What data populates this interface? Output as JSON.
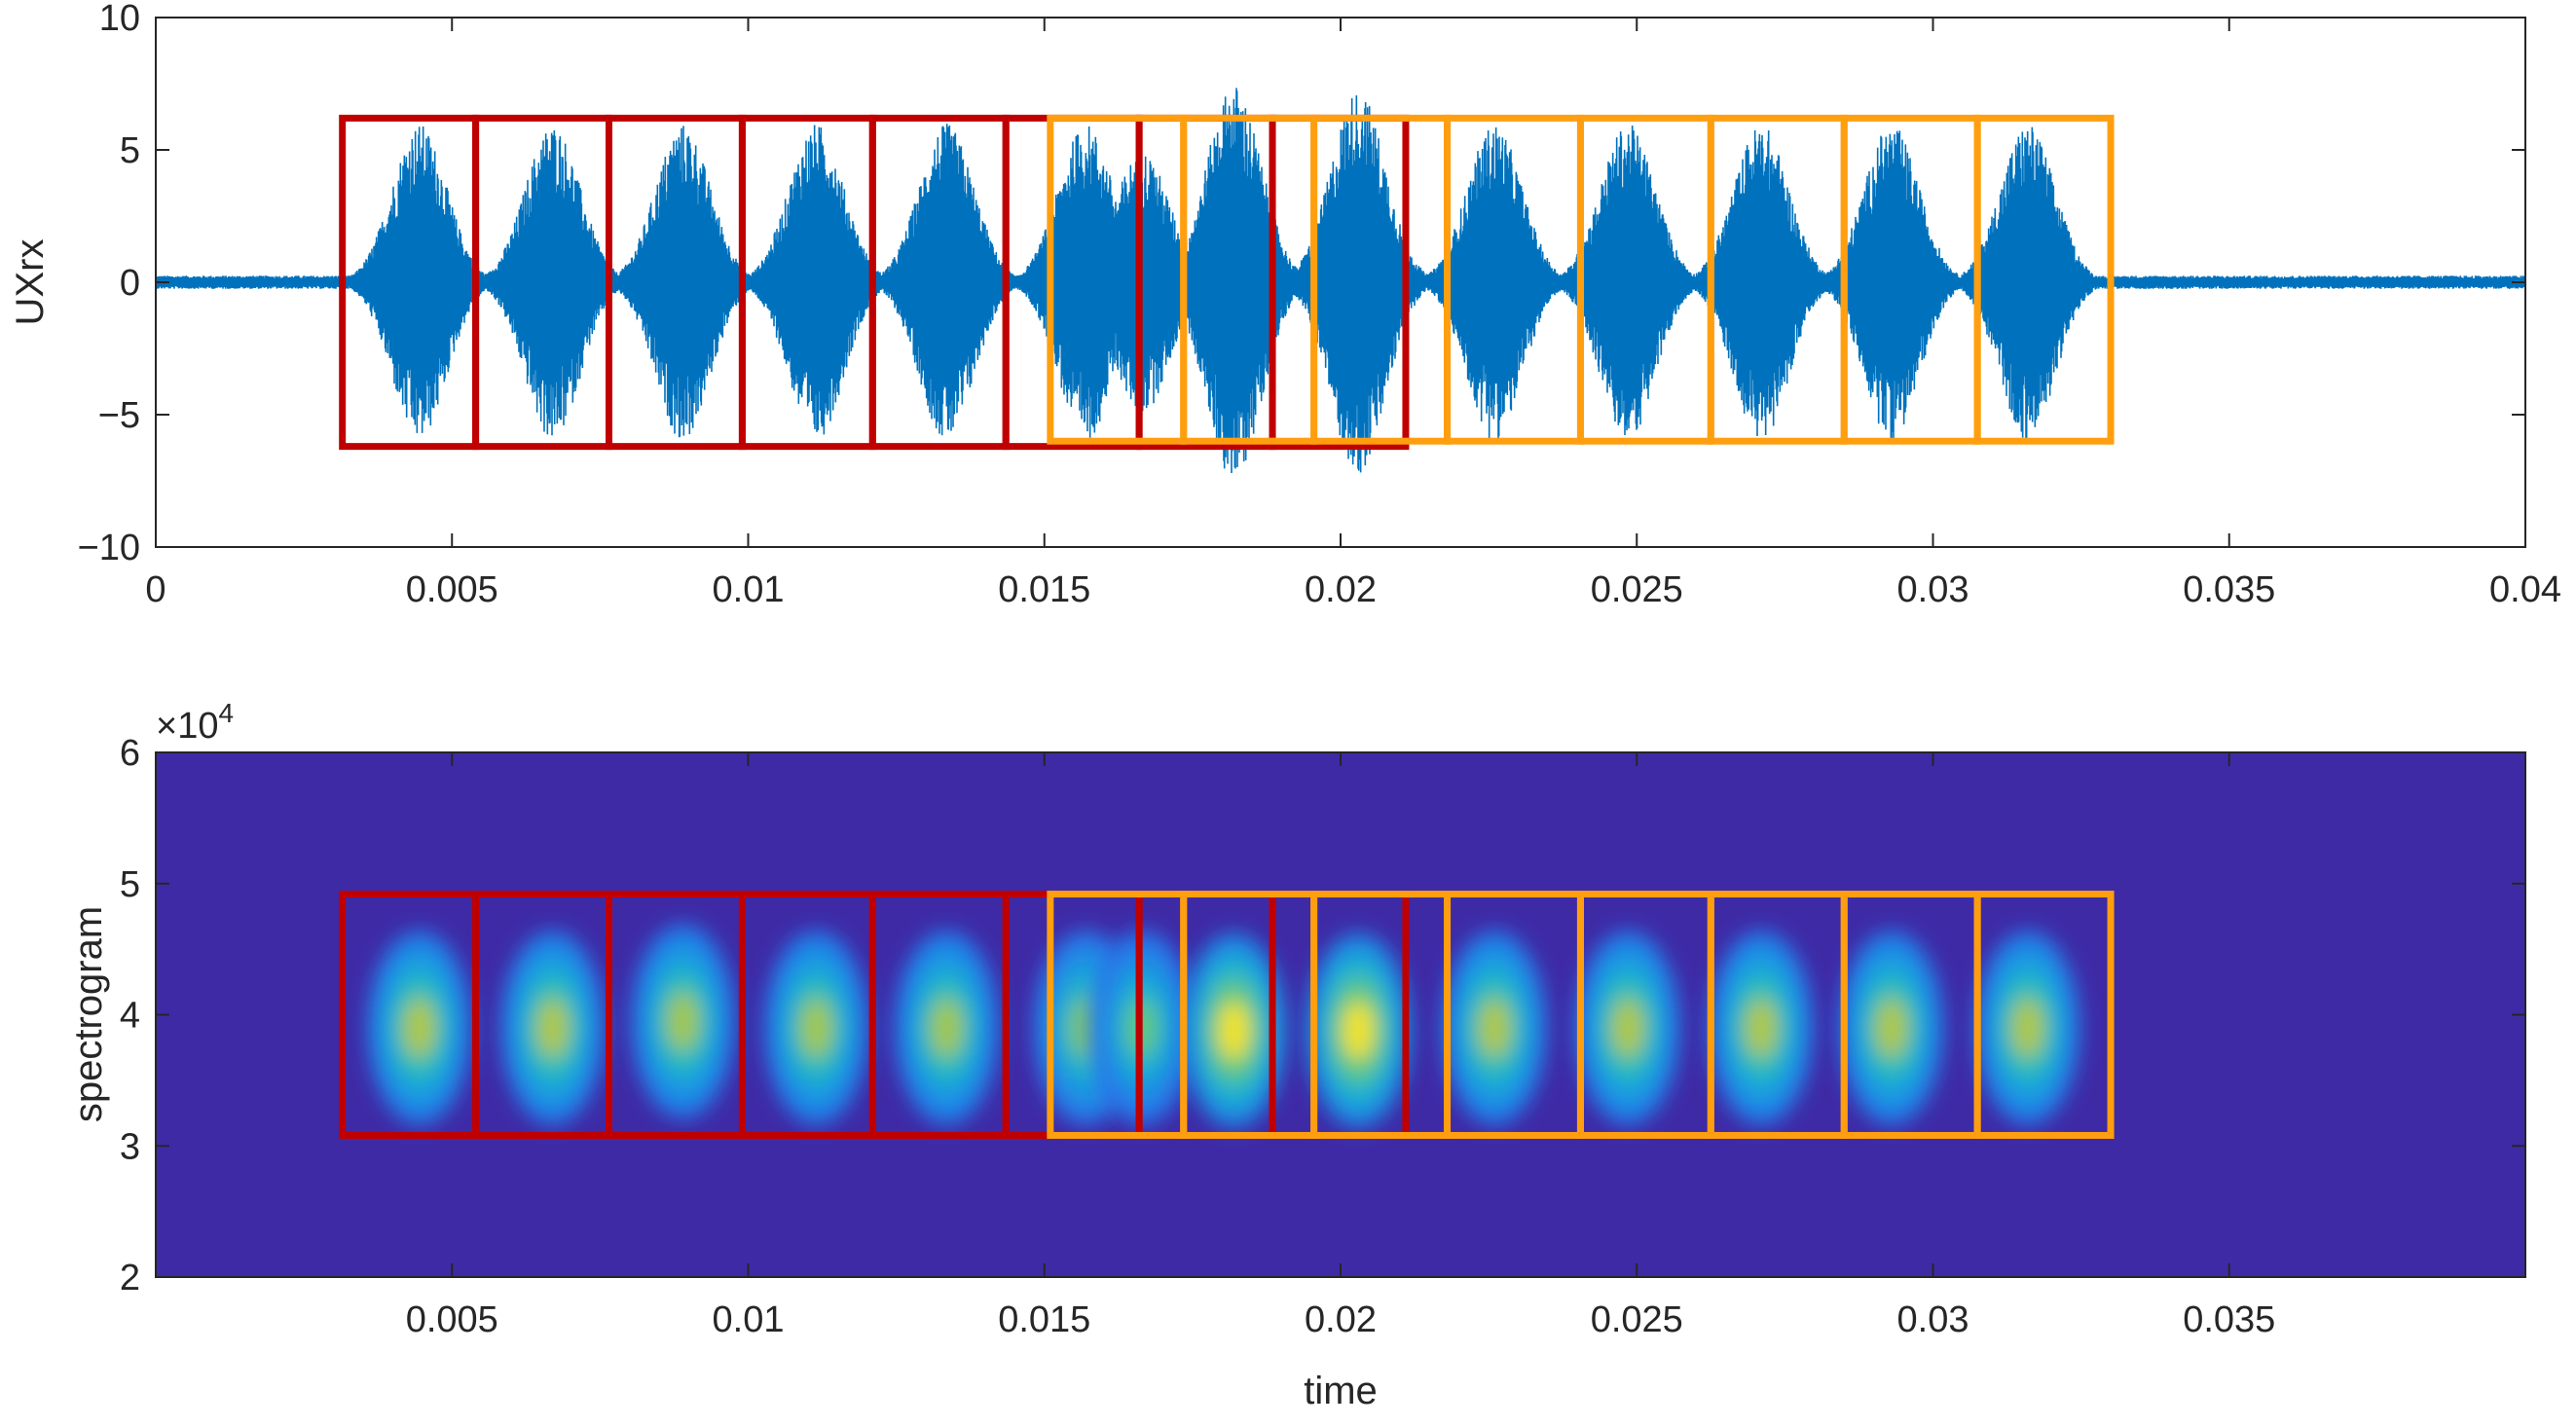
{
  "chart_data": [
    {
      "type": "line",
      "name": "waveform",
      "ylabel": "UXrx",
      "xlabel": "",
      "xlim": [
        0,
        0.04
      ],
      "ylim": [
        -10,
        10
      ],
      "xticks": [
        0,
        0.005,
        0.01,
        0.015,
        0.02,
        0.025,
        0.03,
        0.035,
        0.04
      ],
      "xtick_labels": [
        "0",
        "0.005",
        "0.01",
        "0.015",
        "0.02",
        "0.025",
        "0.03",
        "0.035",
        "0.04"
      ],
      "yticks": [
        10,
        5,
        0,
        -5,
        -10
      ],
      "ytick_labels": [
        "10",
        "5",
        "0",
        "−5",
        "−10"
      ],
      "series_color": "#0072BD",
      "noise_amplitude": 0.25,
      "bursts": [
        {
          "center": 0.00445,
          "peak": 6.0
        },
        {
          "center": 0.0067,
          "peak": 6.0
        },
        {
          "center": 0.0089,
          "peak": 6.0
        },
        {
          "center": 0.01115,
          "peak": 6.0
        },
        {
          "center": 0.01335,
          "peak": 6.0
        },
        {
          "center": 0.0157,
          "peak": 6.0
        },
        {
          "center": 0.01665,
          "peak": 5.0
        },
        {
          "center": 0.0182,
          "peak": 7.5
        },
        {
          "center": 0.0203,
          "peak": 7.3
        },
        {
          "center": 0.0226,
          "peak": 6.0
        },
        {
          "center": 0.02485,
          "peak": 6.0
        },
        {
          "center": 0.0271,
          "peak": 6.0
        },
        {
          "center": 0.0293,
          "peak": 6.0
        },
        {
          "center": 0.0316,
          "peak": 6.0
        }
      ],
      "red_boxes": [
        [
          0.00315,
          0.0054
        ],
        [
          0.0054,
          0.00765
        ],
        [
          0.00765,
          0.0099
        ],
        [
          0.0099,
          0.0121
        ],
        [
          0.0121,
          0.01435
        ],
        [
          0.01435,
          0.0166
        ],
        [
          0.0166,
          0.01885
        ],
        [
          0.01885,
          0.0211
        ]
      ],
      "red_box_y": [
        -6.2,
        6.2
      ],
      "orange_boxes": [
        [
          0.0151,
          0.01735
        ],
        [
          0.01735,
          0.01955
        ],
        [
          0.01955,
          0.0218
        ],
        [
          0.0218,
          0.02405
        ],
        [
          0.02405,
          0.02625
        ],
        [
          0.02625,
          0.0285
        ],
        [
          0.0285,
          0.03075
        ],
        [
          0.03075,
          0.033
        ]
      ],
      "orange_box_y": [
        -6.0,
        6.2
      ]
    },
    {
      "type": "heatmap",
      "name": "spectrogram",
      "ylabel": "spectrogram",
      "xlabel": "time",
      "xlim": [
        0,
        0.04
      ],
      "ylim": [
        20000,
        60000
      ],
      "y_exponent_label": "×10",
      "y_exponent": "4",
      "xticks": [
        0.005,
        0.01,
        0.015,
        0.02,
        0.025,
        0.03,
        0.035
      ],
      "xtick_labels": [
        "0.005",
        "0.01",
        "0.015",
        "0.02",
        "0.025",
        "0.03",
        "0.035"
      ],
      "yticks": [
        60000,
        50000,
        40000,
        30000,
        20000
      ],
      "ytick_labels": [
        "6",
        "5",
        "4",
        "3",
        "2"
      ],
      "background_color": "#3F2AA6",
      "blobs": [
        {
          "center": 0.00445,
          "freq": 39000,
          "intensity": 0.82
        },
        {
          "center": 0.0067,
          "freq": 39000,
          "intensity": 0.82
        },
        {
          "center": 0.0089,
          "freq": 39500,
          "intensity": 0.8
        },
        {
          "center": 0.01115,
          "freq": 39000,
          "intensity": 0.8
        },
        {
          "center": 0.01335,
          "freq": 39000,
          "intensity": 0.8
        },
        {
          "center": 0.0157,
          "freq": 39000,
          "intensity": 0.75
        },
        {
          "center": 0.01665,
          "freq": 39000,
          "intensity": 0.7
        },
        {
          "center": 0.0182,
          "freq": 38800,
          "intensity": 1.0
        },
        {
          "center": 0.0203,
          "freq": 38800,
          "intensity": 1.0
        },
        {
          "center": 0.0226,
          "freq": 39000,
          "intensity": 0.82
        },
        {
          "center": 0.02485,
          "freq": 39000,
          "intensity": 0.82
        },
        {
          "center": 0.0271,
          "freq": 39000,
          "intensity": 0.82
        },
        {
          "center": 0.0293,
          "freq": 39000,
          "intensity": 0.82
        },
        {
          "center": 0.0316,
          "freq": 39000,
          "intensity": 0.82
        }
      ],
      "red_boxes": [
        [
          0.00315,
          0.0054
        ],
        [
          0.0054,
          0.00765
        ],
        [
          0.00765,
          0.0099
        ],
        [
          0.0099,
          0.0121
        ],
        [
          0.0121,
          0.01435
        ],
        [
          0.01435,
          0.0166
        ],
        [
          0.0166,
          0.01885
        ],
        [
          0.01885,
          0.0211
        ]
      ],
      "red_box_y": [
        30800,
        49200
      ],
      "orange_boxes": [
        [
          0.0151,
          0.01735
        ],
        [
          0.01735,
          0.01955
        ],
        [
          0.01955,
          0.0218
        ],
        [
          0.0218,
          0.02405
        ],
        [
          0.02405,
          0.02625
        ],
        [
          0.02625,
          0.0285
        ],
        [
          0.0285,
          0.03075
        ],
        [
          0.03075,
          0.033
        ]
      ],
      "orange_box_y": [
        30800,
        49200
      ]
    }
  ],
  "colors": {
    "red_box": "#C00000",
    "orange_box": "#FF9F10",
    "axis": "#262626",
    "waveform": "#0072BD"
  }
}
